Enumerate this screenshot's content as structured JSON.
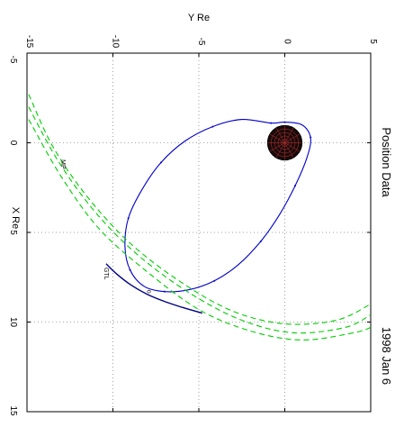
{
  "chart_data": {
    "type": "line",
    "title": "Position Data",
    "date_label": "1998  Jan  6",
    "xlabel": "Y Re",
    "ylabel": "X Re",
    "x_axis": {
      "quantity": "Y Re",
      "range": [
        -15,
        5
      ],
      "ticks": [
        -15,
        -10,
        -5,
        0,
        5
      ]
    },
    "y_axis": {
      "quantity": "X Re",
      "range": [
        -5,
        15
      ],
      "ticks": [
        -5,
        0,
        5,
        10,
        15
      ]
    },
    "grid": true,
    "earth": {
      "center": [
        0,
        0
      ],
      "radius": 1
    },
    "annotations": [
      {
        "text": "MP",
        "at": [
          -13,
          1.2
        ]
      },
      {
        "text": "GTL",
        "at": [
          -10.5,
          7.3
        ]
      },
      {
        "text": "o",
        "at": [
          -8,
          8.3
        ]
      }
    ],
    "series": [
      {
        "role": "orbit",
        "color": "#0000cc",
        "points": [
          [
            -0.8,
            -1.1
          ],
          [
            -2.5,
            -1.3
          ],
          [
            -4.2,
            -0.9
          ],
          [
            -5.8,
            -0.1
          ],
          [
            -7.2,
            1.1
          ],
          [
            -8.3,
            2.6
          ],
          [
            -9.1,
            4.2
          ],
          [
            -9.3,
            5.8
          ],
          [
            -9.0,
            7.1
          ],
          [
            -8.2,
            8.0
          ],
          [
            -7.0,
            8.3
          ],
          [
            -5.6,
            8.2
          ],
          [
            -4.1,
            7.7
          ],
          [
            -2.7,
            6.8
          ],
          [
            -1.4,
            5.5
          ],
          [
            -0.3,
            4.0
          ],
          [
            0.6,
            2.4
          ],
          [
            1.3,
            0.8
          ],
          [
            1.5,
            -0.3
          ],
          [
            1.0,
            -1.0
          ],
          [
            0.0,
            -1.15
          ]
        ]
      },
      {
        "role": "GTL",
        "color": "#000080",
        "points": [
          [
            -10.4,
            6.75
          ],
          [
            -9.8,
            7.3
          ],
          [
            -9.0,
            7.9
          ],
          [
            -8.0,
            8.45
          ],
          [
            -7.0,
            8.85
          ],
          [
            -5.9,
            9.2
          ],
          [
            -4.8,
            9.5
          ]
        ]
      },
      {
        "role": "MP",
        "color": "#00cc00",
        "curves": [
          [
            [
              -14.9,
              -2.7
            ],
            [
              -13.5,
              0.2
            ],
            [
              -11.5,
              3.0
            ],
            [
              -9.0,
              5.6
            ],
            [
              -6.0,
              7.8
            ],
            [
              -3.0,
              9.4
            ],
            [
              0.0,
              10.1
            ],
            [
              3.0,
              9.9
            ],
            [
              5.0,
              9.0
            ]
          ],
          [
            [
              -14.9,
              -2.0
            ],
            [
              -13.2,
              1.0
            ],
            [
              -11.0,
              3.9
            ],
            [
              -8.5,
              6.3
            ],
            [
              -5.5,
              8.4
            ],
            [
              -2.5,
              9.9
            ],
            [
              0.5,
              10.6
            ],
            [
              3.5,
              10.3
            ],
            [
              5.0,
              9.6
            ]
          ],
          [
            [
              -14.9,
              -1.3
            ],
            [
              -13.0,
              1.9
            ],
            [
              -10.8,
              4.8
            ],
            [
              -8.0,
              7.2
            ],
            [
              -5.0,
              9.3
            ],
            [
              -2.0,
              10.5
            ],
            [
              1.0,
              11.0
            ],
            [
              4.0,
              10.6
            ],
            [
              5.0,
              10.3
            ]
          ]
        ]
      }
    ]
  }
}
